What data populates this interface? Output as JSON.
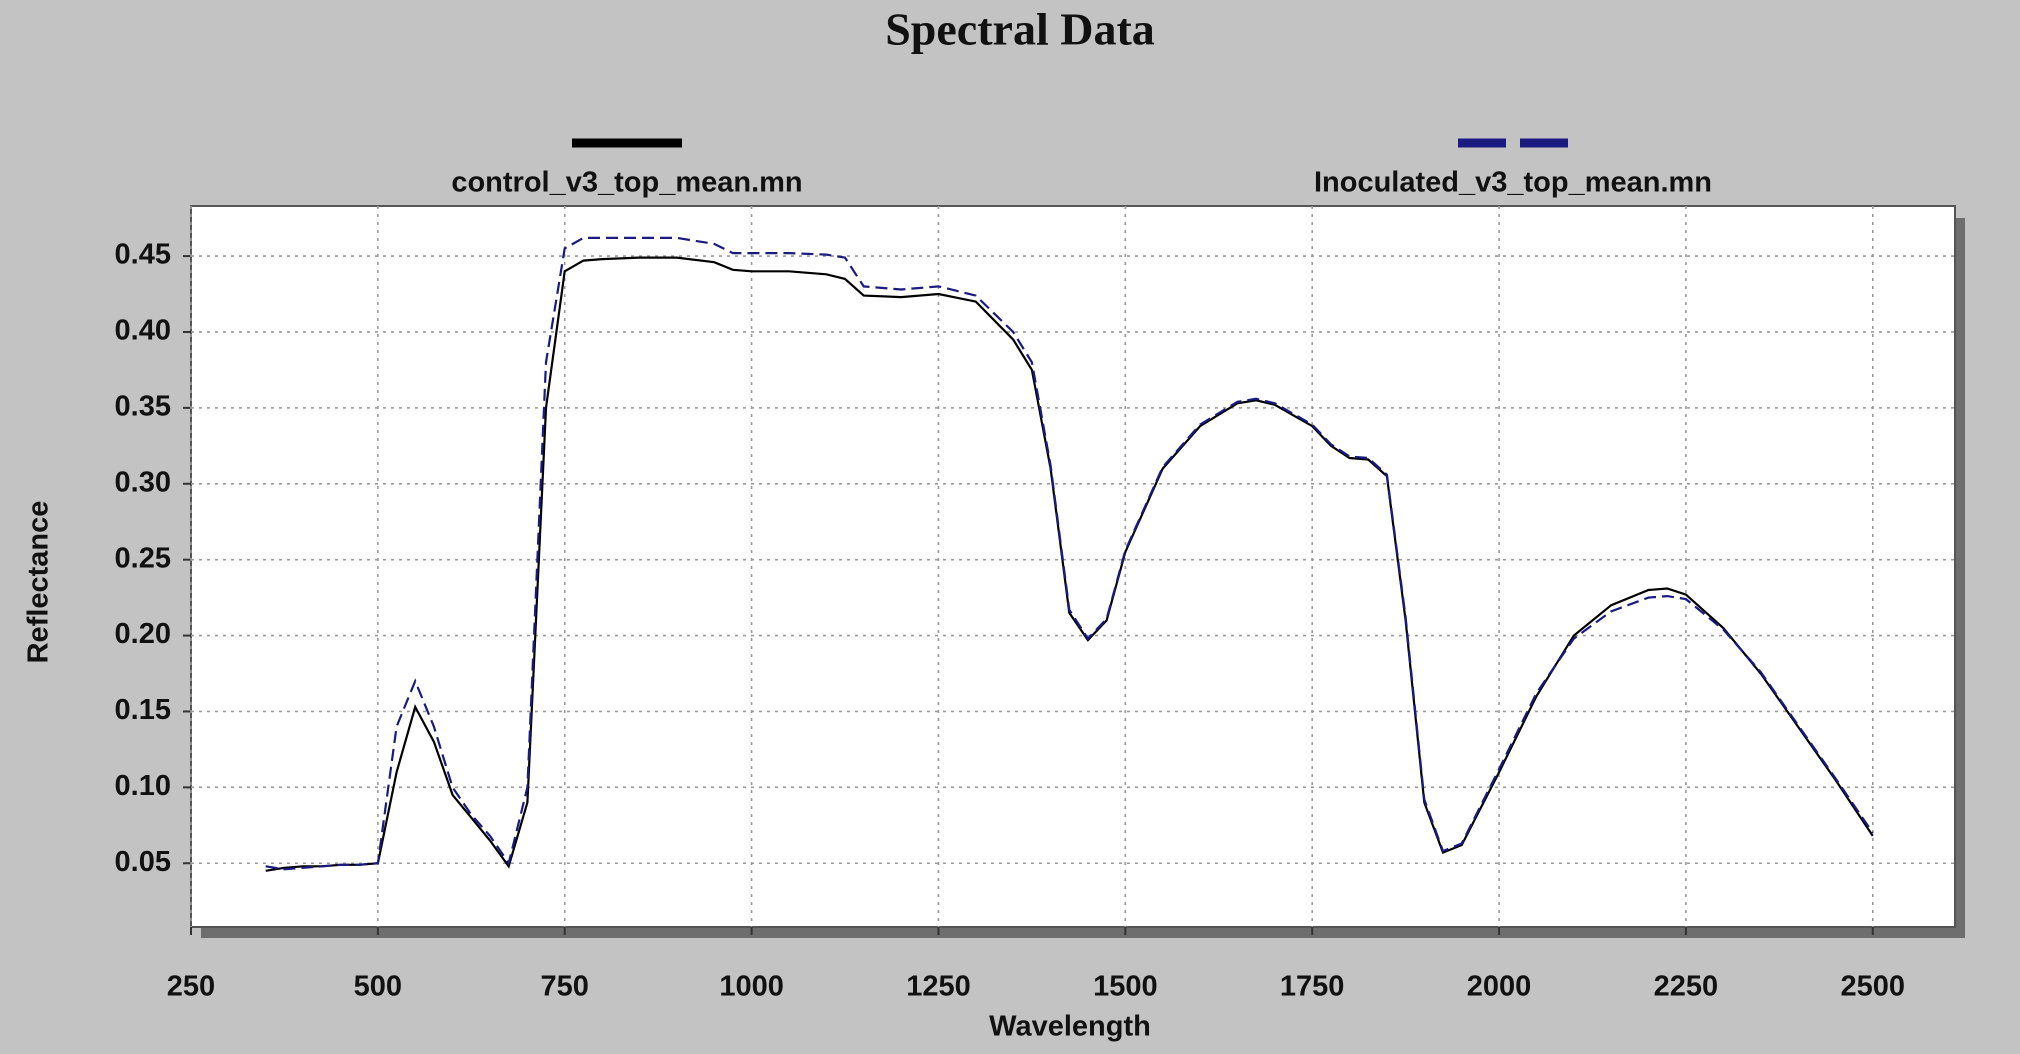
{
  "chart_data": {
    "type": "line",
    "title": "Spectral Data",
    "x_label": "Wavelength",
    "y_label": "Reflectance",
    "x": [
      350,
      375,
      400,
      425,
      450,
      475,
      500,
      525,
      550,
      575,
      600,
      625,
      650,
      675,
      700,
      725,
      750,
      775,
      800,
      850,
      900,
      950,
      975,
      1000,
      1050,
      1100,
      1125,
      1150,
      1200,
      1250,
      1300,
      1350,
      1375,
      1400,
      1425,
      1450,
      1475,
      1500,
      1550,
      1600,
      1650,
      1675,
      1700,
      1750,
      1775,
      1800,
      1825,
      1850,
      1875,
      1900,
      1925,
      1950,
      2000,
      2050,
      2100,
      2150,
      2200,
      2225,
      2250,
      2300,
      2350,
      2400,
      2450,
      2500
    ],
    "series": [
      {
        "name": "control_v3_top_mean.mn",
        "color": "#000000",
        "style": "solid",
        "values": [
          0.045,
          0.047,
          0.048,
          0.048,
          0.049,
          0.049,
          0.05,
          0.11,
          0.153,
          0.13,
          0.095,
          0.08,
          0.065,
          0.048,
          0.09,
          0.35,
          0.44,
          0.447,
          0.448,
          0.449,
          0.449,
          0.446,
          0.441,
          0.44,
          0.44,
          0.438,
          0.435,
          0.424,
          0.423,
          0.425,
          0.42,
          0.395,
          0.375,
          0.31,
          0.215,
          0.197,
          0.21,
          0.255,
          0.31,
          0.338,
          0.353,
          0.355,
          0.352,
          0.338,
          0.325,
          0.317,
          0.316,
          0.305,
          0.21,
          0.09,
          0.057,
          0.062,
          0.11,
          0.16,
          0.2,
          0.22,
          0.23,
          0.231,
          0.227,
          0.205,
          0.175,
          0.14,
          0.105,
          0.068
        ]
      },
      {
        "name": "Inoculated_v3_top_mean.mn",
        "color": "#1a1a80",
        "style": "dashed",
        "values": [
          0.048,
          0.046,
          0.047,
          0.048,
          0.049,
          0.049,
          0.05,
          0.14,
          0.17,
          0.14,
          0.1,
          0.082,
          0.068,
          0.05,
          0.1,
          0.38,
          0.455,
          0.462,
          0.462,
          0.462,
          0.462,
          0.458,
          0.452,
          0.452,
          0.452,
          0.451,
          0.449,
          0.43,
          0.428,
          0.43,
          0.424,
          0.4,
          0.38,
          0.312,
          0.217,
          0.198,
          0.211,
          0.256,
          0.311,
          0.339,
          0.354,
          0.356,
          0.353,
          0.339,
          0.326,
          0.318,
          0.317,
          0.306,
          0.212,
          0.092,
          0.058,
          0.063,
          0.112,
          0.162,
          0.198,
          0.216,
          0.225,
          0.226,
          0.224,
          0.204,
          0.176,
          0.141,
          0.106,
          0.07
        ]
      }
    ],
    "xlim": [
      250,
      2610
    ],
    "xticks": [
      250,
      500,
      750,
      1000,
      1250,
      1500,
      1750,
      2000,
      2250,
      2500
    ],
    "ylim": [
      0.008,
      0.483
    ],
    "yticks": [
      0.05,
      {
        "value": 0.1,
        "label": "0.10"
      },
      0.15,
      {
        "value": 0.2,
        "label": "0.20"
      },
      0.25,
      {
        "value": 0.3,
        "label": "0.30"
      },
      0.35,
      {
        "value": 0.4,
        "label": "0.40"
      },
      0.45
    ],
    "grid": true,
    "legend": "top"
  }
}
